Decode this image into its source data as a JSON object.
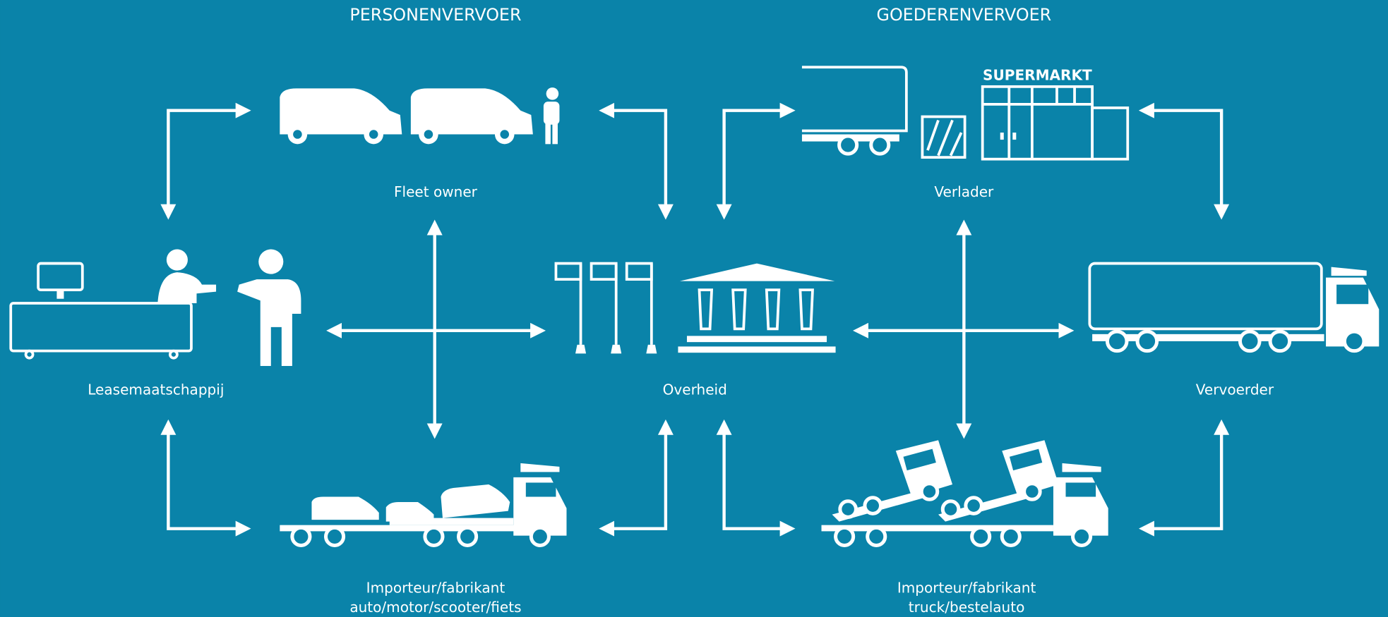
{
  "headings": [
    "PERSONENVERVOER",
    "GOEDERENVERVOER"
  ],
  "nodes": [
    {
      "label": "Fleet owner"
    },
    {
      "label": "Leasemaatschappij"
    },
    {
      "label": "Overheid"
    },
    {
      "label": "Importeur/fabrikant",
      "sublabel": "auto/motor/scooter/fiets"
    },
    {
      "label": "Verlader",
      "sign": "SUPERMARKT"
    },
    {
      "label": "Vervoerder"
    },
    {
      "label": "Importeur/fabrikant",
      "sublabel": "truck/bestelauto"
    }
  ]
}
